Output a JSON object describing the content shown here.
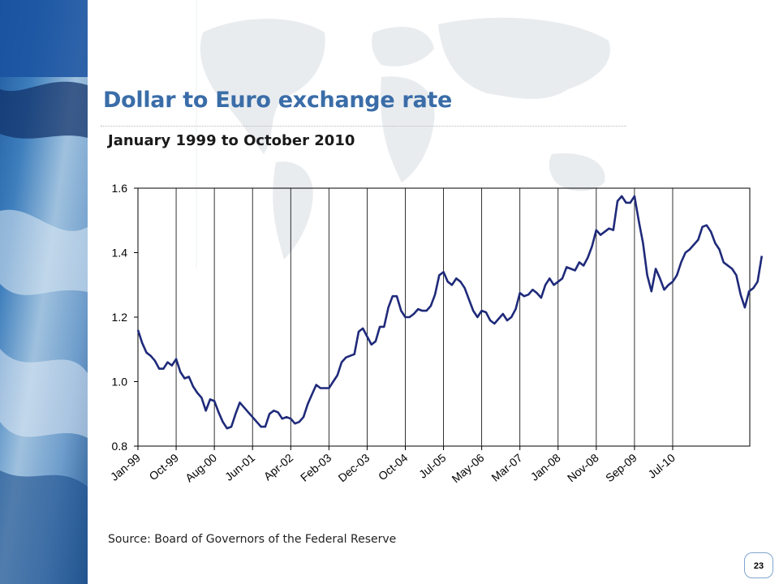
{
  "slide": {
    "title": "Dollar to Euro exchange rate",
    "page_number": "23",
    "source": "Source: Board of Governors of the Federal Reserve",
    "colors": {
      "title": "#3a6da8",
      "line": "#1f2a7a",
      "earth_panel": "#2f6aa8",
      "page_badge_border": "#7fa6cf"
    }
  },
  "chart_data": {
    "type": "line",
    "subtitle": "January 1999 to October 2010",
    "xlabel": "",
    "ylabel": "",
    "ylim": [
      0.8,
      1.6
    ],
    "yticks": [
      "0.8",
      "1.0",
      "1.2",
      "1.4",
      "1.6"
    ],
    "xticks": [
      "Jan-99",
      "Oct-99",
      "Aug-00",
      "Jun-01",
      "Apr-02",
      "Feb-03",
      "Dec-03",
      "Oct-04",
      "Jul-05",
      "May-06",
      "Mar-07",
      "Jan-08",
      "Nov-08",
      "Sep-09",
      "Jul-10"
    ],
    "grid": "vertical",
    "x_start": "Jan-99",
    "x_end": "Oct-10",
    "series": [
      {
        "color": "#1f2a7a",
        "values": [
          1.16,
          1.12,
          1.09,
          1.08,
          1.065,
          1.04,
          1.04,
          1.06,
          1.05,
          1.07,
          1.03,
          1.01,
          1.015,
          0.985,
          0.965,
          0.95,
          0.91,
          0.945,
          0.94,
          0.905,
          0.875,
          0.855,
          0.86,
          0.9,
          0.935,
          0.92,
          0.905,
          0.89,
          0.875,
          0.86,
          0.86,
          0.9,
          0.91,
          0.905,
          0.885,
          0.89,
          0.885,
          0.87,
          0.875,
          0.89,
          0.93,
          0.96,
          0.99,
          0.98,
          0.98,
          0.98,
          1.0,
          1.02,
          1.06,
          1.075,
          1.08,
          1.085,
          1.155,
          1.165,
          1.14,
          1.115,
          1.125,
          1.17,
          1.17,
          1.23,
          1.265,
          1.265,
          1.22,
          1.2,
          1.2,
          1.21,
          1.225,
          1.22,
          1.22,
          1.235,
          1.27,
          1.33,
          1.34,
          1.31,
          1.3,
          1.32,
          1.31,
          1.29,
          1.255,
          1.22,
          1.2,
          1.22,
          1.215,
          1.19,
          1.18,
          1.195,
          1.21,
          1.19,
          1.2,
          1.225,
          1.275,
          1.265,
          1.27,
          1.285,
          1.275,
          1.26,
          1.3,
          1.32,
          1.3,
          1.31,
          1.32,
          1.355,
          1.35,
          1.345,
          1.37,
          1.36,
          1.385,
          1.42,
          1.47,
          1.455,
          1.465,
          1.475,
          1.47,
          1.56,
          1.575,
          1.555,
          1.555,
          1.575,
          1.5,
          1.43,
          1.33,
          1.28,
          1.35,
          1.32,
          1.285,
          1.3,
          1.31,
          1.33,
          1.37,
          1.4,
          1.41,
          1.425,
          1.44,
          1.48,
          1.485,
          1.465,
          1.43,
          1.41,
          1.37,
          1.36,
          1.35,
          1.33,
          1.27,
          1.23,
          1.28,
          1.29,
          1.31,
          1.39
        ]
      }
    ]
  }
}
